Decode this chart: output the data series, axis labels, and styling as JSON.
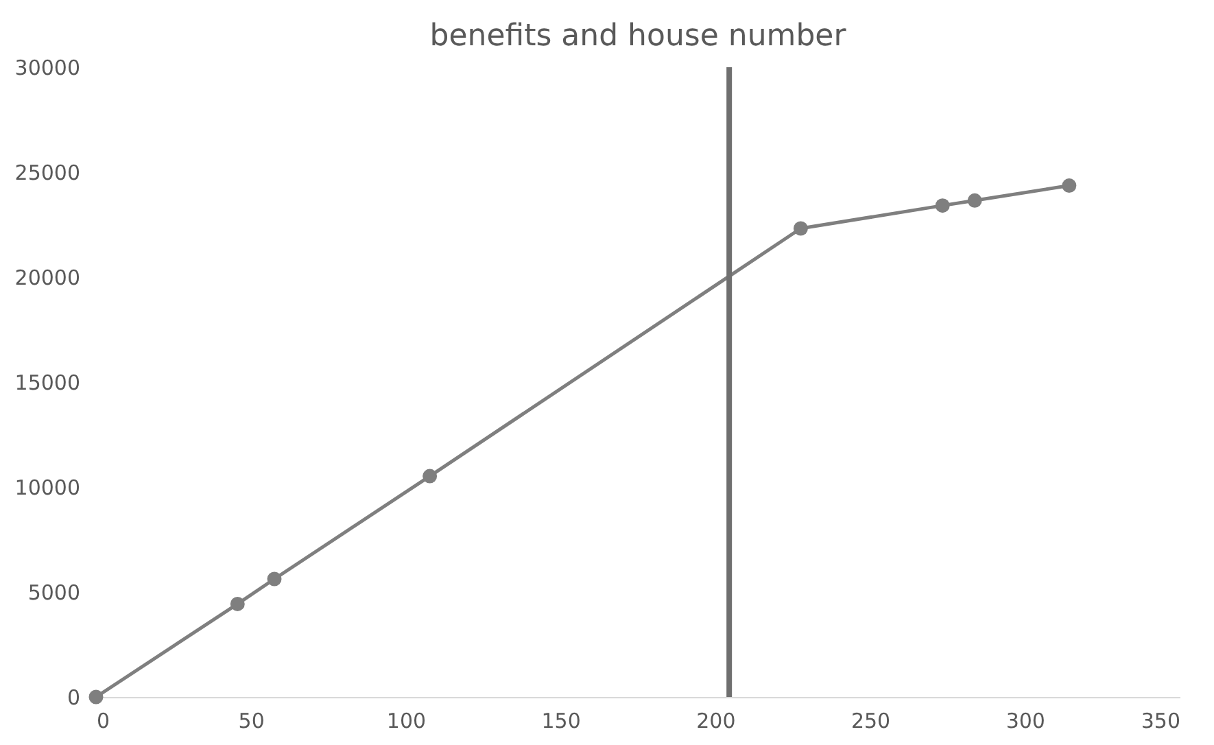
{
  "chart_data": {
    "type": "line",
    "title": "benefits and house number",
    "x": [
      0,
      45.7,
      57.6,
      107.8,
      227.6,
      273.4,
      283.8,
      314.3
    ],
    "series": [
      {
        "color": "#7f7f7f",
        "values": [
          0,
          4430,
          5620,
          10520,
          22320,
          23410,
          23650,
          24360
        ]
      }
    ],
    "xlim": [
      0,
      350
    ],
    "xticks": [
      0,
      50,
      100,
      150,
      200,
      250,
      300,
      350
    ],
    "ylim": [
      0,
      30000
    ],
    "yticks": [
      0,
      5000,
      10000,
      15000,
      20000,
      25000,
      30000
    ],
    "marker": "circle",
    "grid": false,
    "ref_lines": [
      {
        "axis": "x",
        "value": 204.5,
        "color": "#6f6f6f"
      }
    ]
  }
}
